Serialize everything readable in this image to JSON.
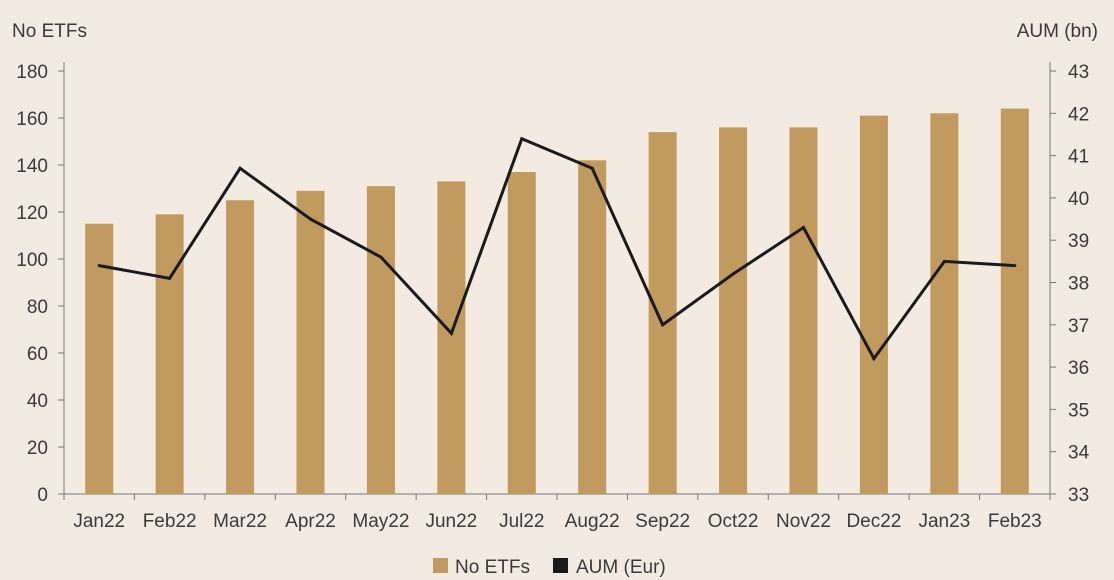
{
  "chart_data": {
    "type": "bar",
    "categories": [
      "Jan22",
      "Feb22",
      "Mar22",
      "Apr22",
      "May22",
      "Jun22",
      "Jul22",
      "Aug22",
      "Sep22",
      "Oct22",
      "Nov22",
      "Dec22",
      "Jan23",
      "Feb23"
    ],
    "series": [
      {
        "name": "No ETFs",
        "type": "bar",
        "axis": "left",
        "color": "#c09a5f",
        "values": [
          115,
          119,
          125,
          129,
          131,
          133,
          137,
          142,
          154,
          156,
          156,
          161,
          162,
          164
        ]
      },
      {
        "name": "AUM (Eur)",
        "type": "line",
        "axis": "right",
        "color": "#1a1a1a",
        "values": [
          38.4,
          38.1,
          40.7,
          39.5,
          38.6,
          36.8,
          41.4,
          40.7,
          37.0,
          38.2,
          39.3,
          36.2,
          38.5,
          38.4
        ]
      }
    ],
    "ylabel_left": "No ETFs",
    "ylabel_right": "AUM (bn)",
    "ylim_left": [
      0,
      180
    ],
    "yticks_left": [
      "0",
      "20",
      "40",
      "60",
      "80",
      "100",
      "120",
      "140",
      "160",
      "180"
    ],
    "ylim_right": [
      33,
      43
    ],
    "yticks_right": [
      "33",
      "34",
      "35",
      "36",
      "37",
      "38",
      "39",
      "40",
      "41",
      "42",
      "43"
    ],
    "grid": false,
    "legend_position": "bottom-center",
    "legend": [
      {
        "label": "No ETFs",
        "color": "#c09a5f"
      },
      {
        "label": "AUM (Eur)",
        "color": "#1a1a1a"
      }
    ]
  }
}
